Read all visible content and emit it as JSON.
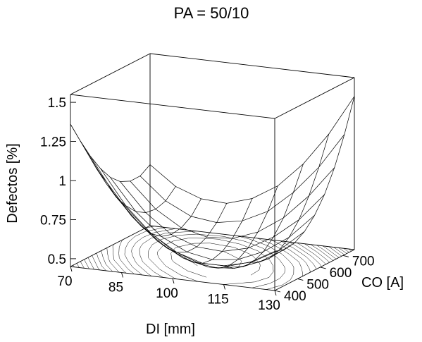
{
  "chart_data": {
    "type": "surface",
    "title": "PA = 50/10",
    "xlabel": "DI [mm]",
    "ylabel": "CO [A]",
    "zlabel": "Defectos [%]",
    "x_ticks": [
      "70",
      "85",
      "100",
      "115",
      "130"
    ],
    "y_ticks": [
      "400",
      "500",
      "600",
      "700"
    ],
    "z_ticks": [
      "0.5",
      "0.75",
      "1",
      "1.25",
      "1.5"
    ],
    "xlim": [
      70,
      130
    ],
    "ylim": [
      400,
      750
    ],
    "zlim": [
      0.45,
      1.55
    ],
    "grid": false,
    "contour_on_floor": true,
    "x": [
      70,
      77.5,
      85,
      92.5,
      100,
      107.5,
      115,
      122.5,
      130
    ],
    "y": [
      400,
      443.75,
      487.5,
      531.25,
      575,
      618.75,
      662.5,
      706.25,
      750
    ],
    "z": [
      [
        1.36,
        1.1,
        0.9,
        0.74,
        0.63,
        0.57,
        0.57,
        0.61,
        0.7
      ],
      [
        1.22,
        0.97,
        0.78,
        0.64,
        0.55,
        0.51,
        0.52,
        0.58,
        0.68
      ],
      [
        1.09,
        0.85,
        0.68,
        0.56,
        0.49,
        0.47,
        0.5,
        0.57,
        0.69
      ],
      [
        0.98,
        0.76,
        0.6,
        0.5,
        0.45,
        0.45,
        0.5,
        0.59,
        0.73
      ],
      [
        0.89,
        0.69,
        0.55,
        0.47,
        0.44,
        0.46,
        0.53,
        0.64,
        0.8
      ],
      [
        0.83,
        0.65,
        0.53,
        0.47,
        0.46,
        0.5,
        0.59,
        0.72,
        0.9
      ],
      [
        0.8,
        0.64,
        0.54,
        0.5,
        0.51,
        0.57,
        0.68,
        0.84,
        1.04
      ],
      [
        0.8,
        0.66,
        0.58,
        0.56,
        0.59,
        0.67,
        0.81,
        0.99,
        1.22
      ],
      [
        0.84,
        0.72,
        0.66,
        0.65,
        0.7,
        0.8,
        0.96,
        1.17,
        1.43
      ]
    ]
  }
}
